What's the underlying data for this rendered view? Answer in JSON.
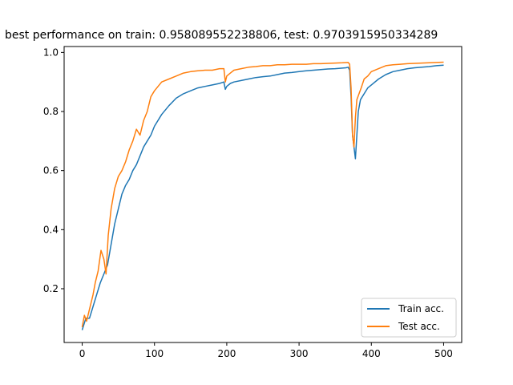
{
  "chart_data": {
    "type": "line",
    "title": "best performance on train: 0.958089552238806, test: 0.9703915950334289",
    "xlabel": "",
    "ylabel": "",
    "xlim": [
      -25,
      525
    ],
    "ylim": [
      0.018,
      1.02
    ],
    "xticks": [
      0,
      100,
      200,
      300,
      400,
      500
    ],
    "yticks": [
      0.2,
      0.4,
      0.6,
      0.8,
      1.0
    ],
    "xtick_labels": [
      "0",
      "100",
      "200",
      "300",
      "400",
      "500"
    ],
    "ytick_labels": [
      "0.2",
      "0.4",
      "0.6",
      "0.8",
      "1.0"
    ],
    "legend_position": "lower-right",
    "series": [
      {
        "name": "Train acc.",
        "color": "#1f77b4",
        "x": [
          0,
          5,
          10,
          15,
          20,
          25,
          30,
          35,
          40,
          45,
          50,
          55,
          60,
          65,
          70,
          75,
          80,
          85,
          90,
          95,
          100,
          110,
          120,
          130,
          140,
          150,
          160,
          170,
          180,
          190,
          196,
          198,
          200,
          205,
          210,
          220,
          230,
          240,
          250,
          260,
          270,
          280,
          290,
          300,
          310,
          320,
          330,
          340,
          350,
          360,
          365,
          368,
          370,
          372,
          374,
          376,
          378,
          380,
          382,
          385,
          390,
          395,
          400,
          410,
          420,
          430,
          440,
          450,
          460,
          470,
          480,
          490,
          500
        ],
        "values": [
          0.06,
          0.1,
          0.1,
          0.14,
          0.18,
          0.22,
          0.25,
          0.28,
          0.35,
          0.42,
          0.47,
          0.52,
          0.55,
          0.57,
          0.6,
          0.62,
          0.65,
          0.68,
          0.7,
          0.72,
          0.75,
          0.79,
          0.82,
          0.845,
          0.86,
          0.87,
          0.88,
          0.885,
          0.89,
          0.895,
          0.9,
          0.875,
          0.885,
          0.895,
          0.9,
          0.905,
          0.91,
          0.915,
          0.918,
          0.92,
          0.925,
          0.93,
          0.932,
          0.935,
          0.938,
          0.94,
          0.942,
          0.944,
          0.945,
          0.947,
          0.948,
          0.95,
          0.94,
          0.85,
          0.72,
          0.68,
          0.64,
          0.72,
          0.8,
          0.84,
          0.86,
          0.88,
          0.89,
          0.91,
          0.925,
          0.935,
          0.94,
          0.945,
          0.948,
          0.95,
          0.952,
          0.955,
          0.957
        ]
      },
      {
        "name": "Test acc.",
        "color": "#ff7f0e",
        "x": [
          0,
          3,
          6,
          9,
          12,
          15,
          18,
          22,
          26,
          30,
          33,
          36,
          40,
          45,
          50,
          55,
          60,
          65,
          70,
          75,
          80,
          85,
          90,
          95,
          100,
          110,
          120,
          130,
          140,
          150,
          160,
          170,
          180,
          190,
          196,
          198,
          200,
          205,
          210,
          220,
          230,
          240,
          250,
          260,
          270,
          280,
          290,
          300,
          310,
          320,
          330,
          340,
          350,
          360,
          368,
          370,
          372,
          374,
          376,
          378,
          380,
          383,
          386,
          390,
          395,
          400,
          410,
          420,
          430,
          440,
          450,
          460,
          470,
          480,
          490,
          500
        ],
        "values": [
          0.07,
          0.11,
          0.09,
          0.12,
          0.15,
          0.18,
          0.22,
          0.26,
          0.33,
          0.3,
          0.25,
          0.38,
          0.47,
          0.54,
          0.58,
          0.6,
          0.63,
          0.67,
          0.7,
          0.74,
          0.72,
          0.77,
          0.8,
          0.85,
          0.87,
          0.9,
          0.91,
          0.92,
          0.93,
          0.935,
          0.938,
          0.94,
          0.94,
          0.945,
          0.945,
          0.9,
          0.92,
          0.93,
          0.94,
          0.945,
          0.95,
          0.952,
          0.955,
          0.955,
          0.958,
          0.958,
          0.96,
          0.96,
          0.96,
          0.962,
          0.962,
          0.963,
          0.964,
          0.965,
          0.966,
          0.96,
          0.88,
          0.72,
          0.68,
          0.78,
          0.84,
          0.86,
          0.88,
          0.91,
          0.92,
          0.935,
          0.945,
          0.955,
          0.958,
          0.96,
          0.962,
          0.963,
          0.964,
          0.965,
          0.966,
          0.967
        ]
      }
    ]
  }
}
